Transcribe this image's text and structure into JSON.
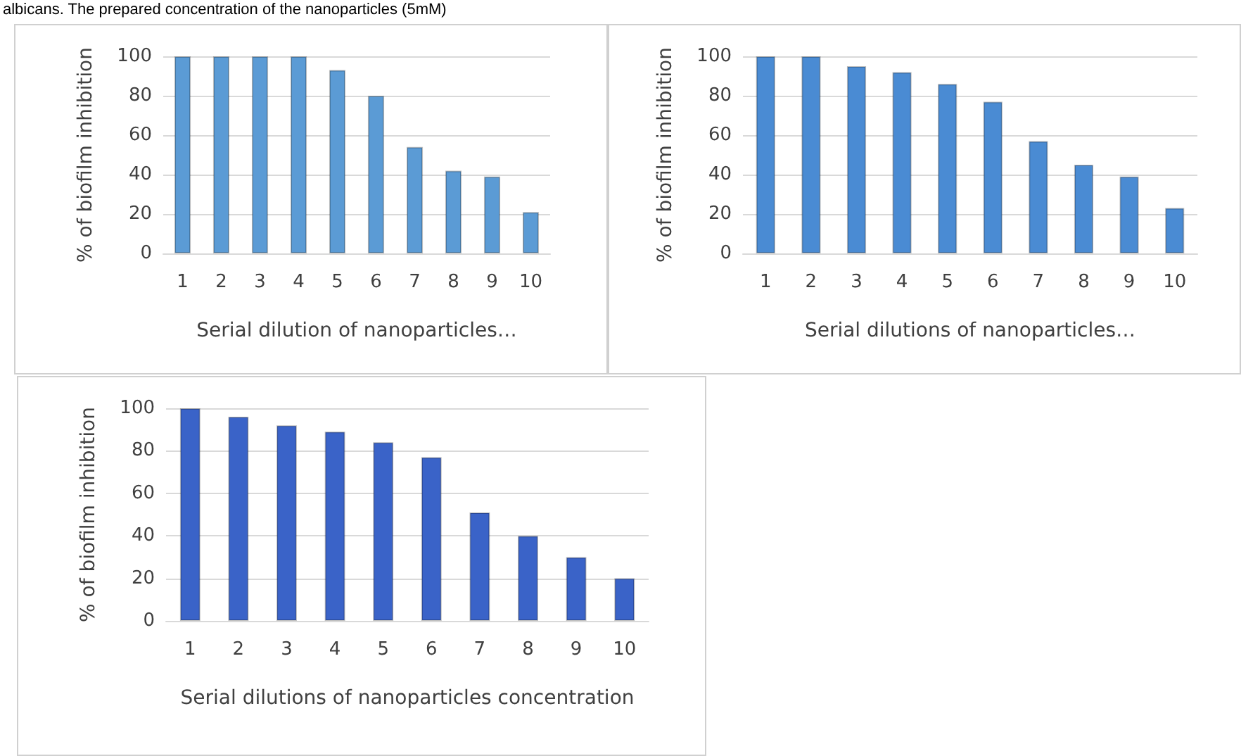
{
  "chart_data": [
    {
      "type": "bar",
      "annotations": [
        "albicans. The prepared concentration of the nanoparticles (5mM)"
      ],
      "xlabel": "Serial dilution of nanoparticles…",
      "ylabel": "% of biofilm inhibition",
      "categories": [
        "1",
        "2",
        "3",
        "4",
        "5",
        "6",
        "7",
        "8",
        "9",
        "10"
      ],
      "values": [
        100,
        100,
        100,
        100,
        93,
        80,
        54,
        42,
        39,
        21
      ],
      "color": "#5b9bd5",
      "ylim": [
        0,
        100
      ],
      "yticks": [
        0,
        20,
        40,
        60,
        80,
        100
      ],
      "grid": "y"
    },
    {
      "type": "bar",
      "xlabel": "Serial dilutions of nanoparticles…",
      "ylabel": "% of biofilm inhibition",
      "categories": [
        "1",
        "2",
        "3",
        "4",
        "5",
        "6",
        "7",
        "8",
        "9",
        "10"
      ],
      "values": [
        100,
        100,
        95,
        92,
        86,
        77,
        57,
        45,
        39,
        23
      ],
      "color": "#4a8bd3",
      "ylim": [
        0,
        100
      ],
      "yticks": [
        0,
        20,
        40,
        60,
        80,
        100
      ],
      "grid": "y"
    },
    {
      "type": "bar",
      "xlabel": "Serial dilutions of nanoparticles concentration",
      "ylabel": "% of biofilm inhibition",
      "categories": [
        "1",
        "2",
        "3",
        "4",
        "5",
        "6",
        "7",
        "8",
        "9",
        "10"
      ],
      "values": [
        100,
        96,
        92,
        89,
        84,
        77,
        51,
        40,
        30,
        20
      ],
      "color": "#3a63c8",
      "ylim": [
        0,
        100
      ],
      "yticks": [
        0,
        20,
        40,
        60,
        80,
        100
      ],
      "grid": "y"
    }
  ]
}
